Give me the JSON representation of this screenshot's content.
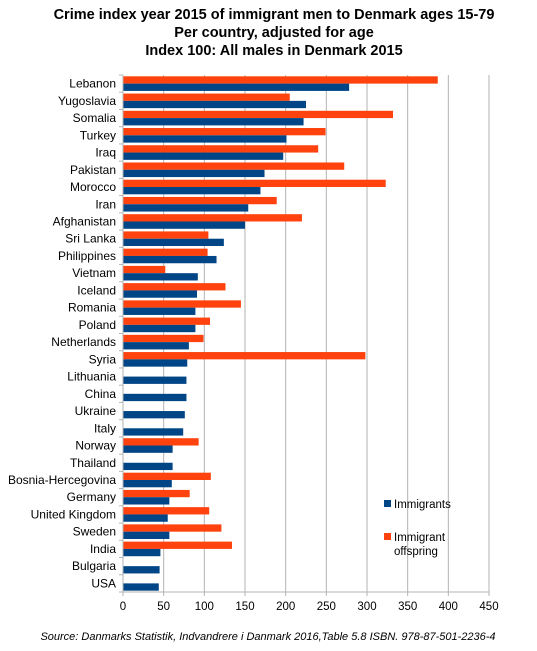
{
  "chart_data": {
    "type": "bar",
    "orientation": "horizontal",
    "title_lines": [
      "Crime index year 2015 of immigrant men to Denmark ages 15-79",
      "Per country, adjusted for age",
      "Index 100: All males in Denmark 2015"
    ],
    "source": "Source: Danmarks Statistik, Indvandrere i Danmark 2016,Table 5.8 ISBN. 978-87-501-2236-4",
    "categories": [
      "Lebanon",
      "Yugoslavia",
      "Somalia",
      "Turkey",
      "Iraq",
      "Pakistan",
      "Morocco",
      "Iran",
      "Afghanistan",
      "Sri Lanka",
      "Philippines",
      "Vietnam",
      "Iceland",
      "Romania",
      "Poland",
      "Netherlands",
      "Syria",
      "Lithuania",
      "China",
      "Ukraine",
      "Italy",
      "Norway",
      "Thailand",
      "Bosnia-Hercegovina",
      "Germany",
      "United Kingdom",
      "Sweden",
      "India",
      "Bulgaria",
      "USA"
    ],
    "series": [
      {
        "name": "Immigrant offspring",
        "color": "#ff420e",
        "values": [
          387,
          205,
          332,
          249,
          240,
          272,
          323,
          189,
          220,
          105,
          104,
          52,
          126,
          145,
          107,
          99,
          298,
          null,
          null,
          null,
          null,
          93,
          null,
          108,
          82,
          106,
          121,
          134,
          null,
          null
        ]
      },
      {
        "name": "Immigrants",
        "color": "#004586",
        "values": [
          278,
          225,
          222,
          201,
          197,
          174,
          169,
          154,
          150,
          124,
          115,
          92,
          91,
          89,
          89,
          81,
          79,
          78,
          78,
          76,
          74,
          61,
          61,
          60,
          57,
          55,
          57,
          46,
          45,
          44
        ]
      }
    ],
    "legend": [
      {
        "label": "Immigrants",
        "color": "#004586"
      },
      {
        "label": "Immigrant offspring",
        "color": "#ff420e"
      }
    ],
    "legend_position": "right",
    "xticks": [
      "0",
      "50",
      "100",
      "150",
      "200",
      "250",
      "300",
      "350",
      "400",
      "450"
    ],
    "xlim": [
      0,
      450
    ],
    "grid": true
  }
}
